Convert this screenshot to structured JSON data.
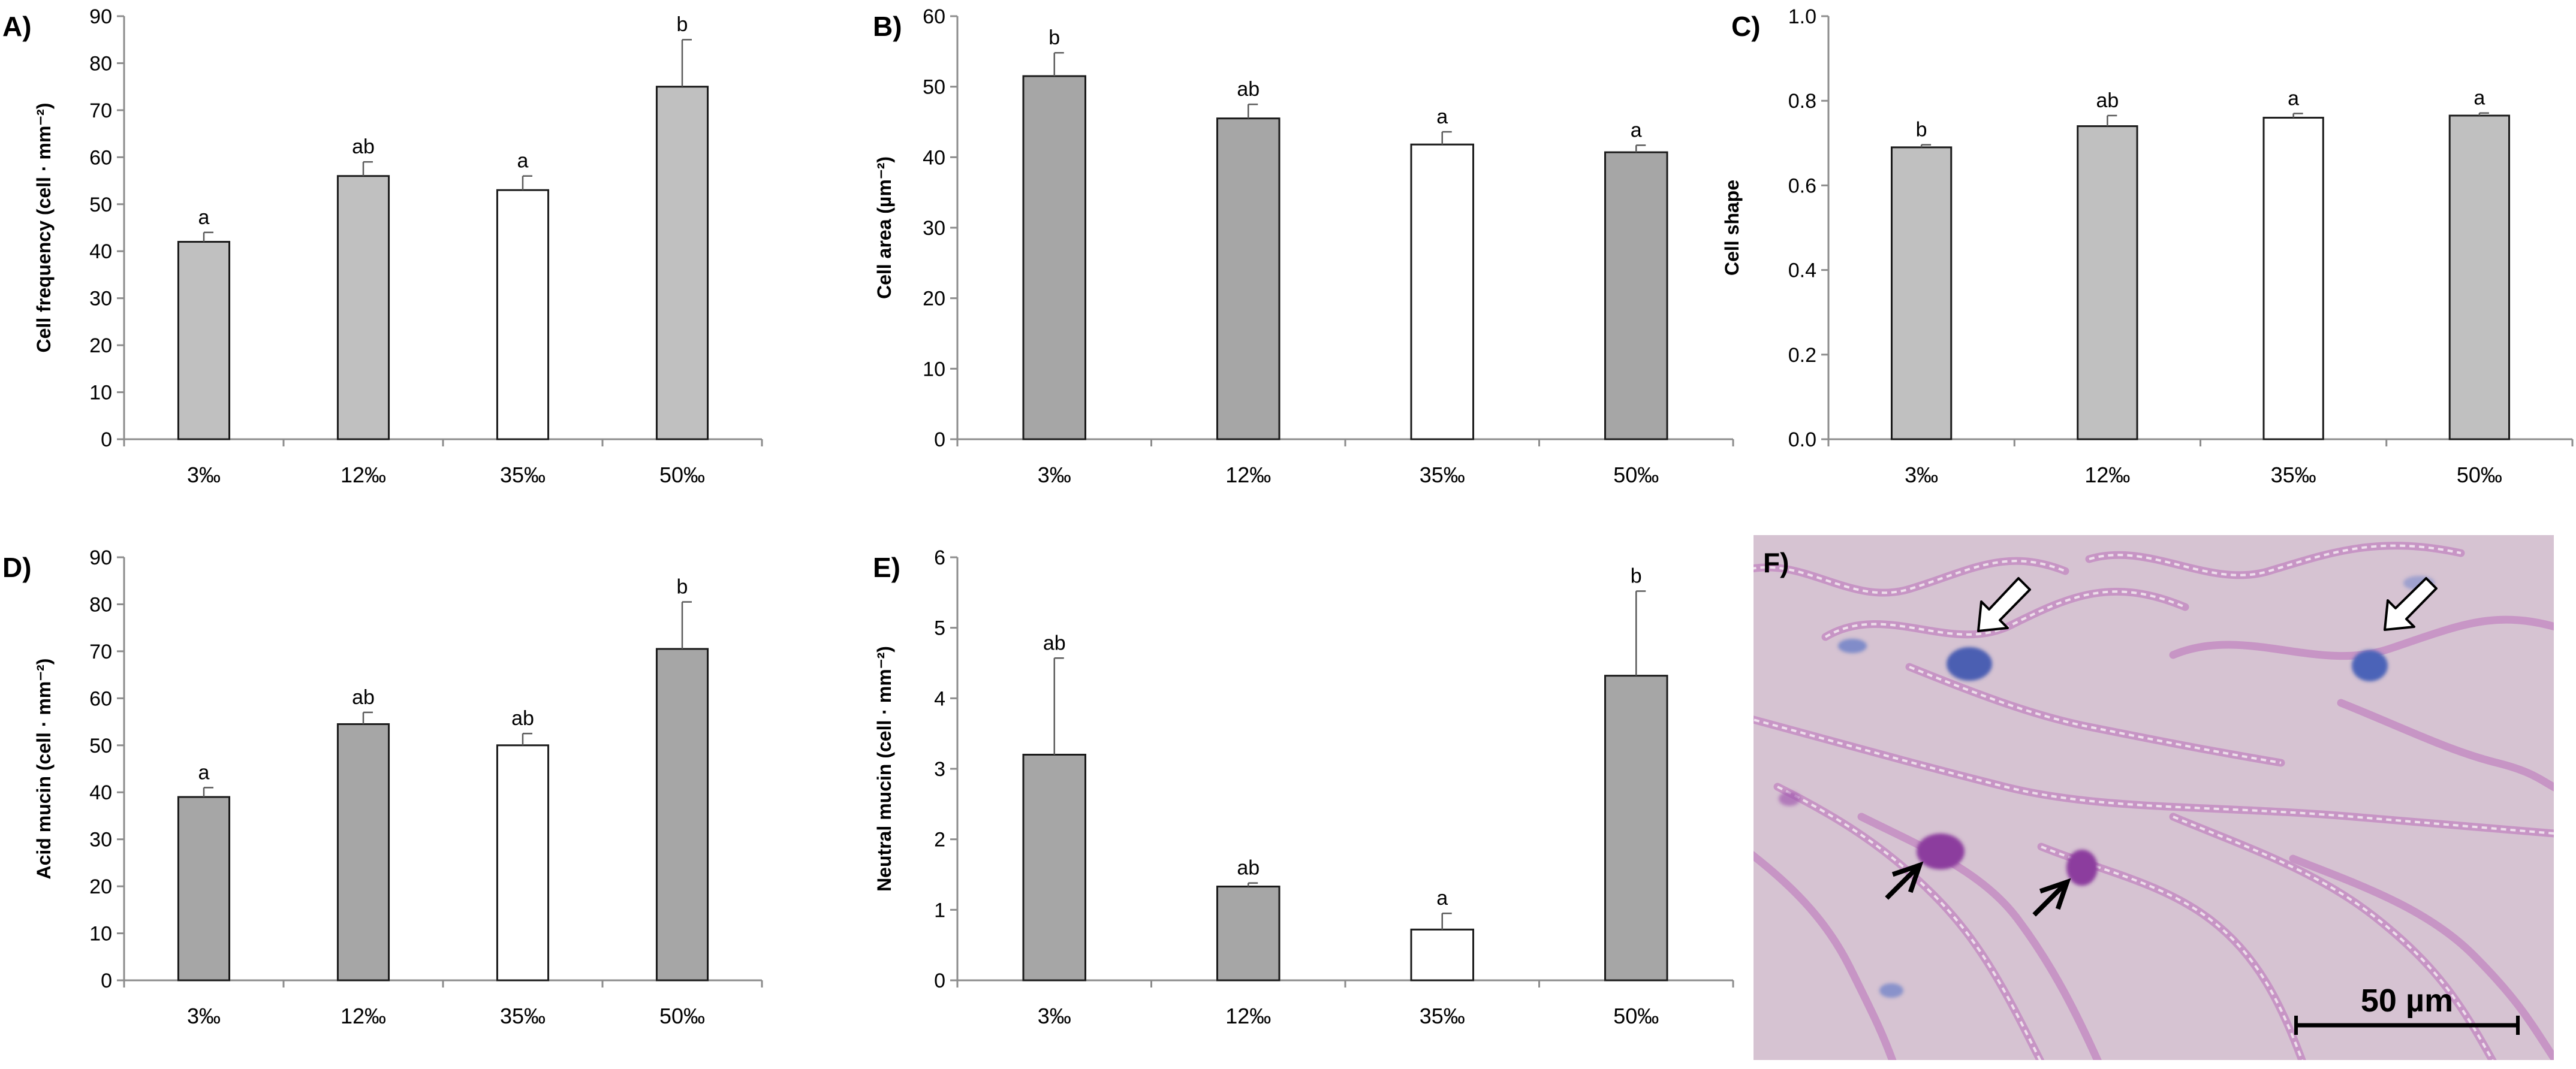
{
  "chart_data": [
    {
      "type": "bar",
      "panel": "A)",
      "categories": [
        "3‰",
        "12‰",
        "35‰",
        "50‰"
      ],
      "values": [
        42,
        56,
        53,
        75
      ],
      "errors": [
        2,
        3,
        3,
        10
      ],
      "letters": [
        "a",
        "ab",
        "a",
        "b"
      ],
      "bar_colors": [
        "#c0c0c0",
        "#c0c0c0",
        "#ffffff",
        "#c0c0c0"
      ],
      "ylabel": "Cell frequency (cell · mm⁻²)",
      "ylim": [
        0,
        90
      ],
      "ytick_labels": [
        "0",
        "10",
        "20",
        "30",
        "40",
        "50",
        "60",
        "70",
        "80",
        "90"
      ]
    },
    {
      "type": "bar",
      "panel": "B)",
      "categories": [
        "3‰",
        "12‰",
        "35‰",
        "50‰"
      ],
      "values": [
        51.5,
        45.5,
        41.8,
        40.7
      ],
      "errors": [
        3.3,
        2.0,
        1.8,
        1.0
      ],
      "letters": [
        "b",
        "ab",
        "a",
        "a"
      ],
      "bar_colors": [
        "#a6a6a6",
        "#a6a6a6",
        "#ffffff",
        "#a6a6a6"
      ],
      "ylabel": "Cell area (µm⁻²)",
      "ylim": [
        0,
        60
      ],
      "ytick_labels": [
        "0",
        "10",
        "20",
        "30",
        "40",
        "50",
        "60"
      ]
    },
    {
      "type": "bar",
      "panel": "C)",
      "categories": [
        "3‰",
        "12‰",
        "35‰",
        "50‰"
      ],
      "values": [
        0.69,
        0.74,
        0.76,
        0.765
      ],
      "errors": [
        0.006,
        0.025,
        0.01,
        0.006
      ],
      "letters": [
        "b",
        "ab",
        "a",
        "a"
      ],
      "bar_colors": [
        "#c0c0c0",
        "#c0c0c0",
        "#ffffff",
        "#c0c0c0"
      ],
      "ylabel": "Cell shape",
      "ylim": [
        0,
        1
      ],
      "ytick_labels": [
        "0.0",
        "0.2",
        "0.4",
        "0.6",
        "0.8",
        "1.0"
      ]
    },
    {
      "type": "bar",
      "panel": "D)",
      "categories": [
        "3‰",
        "12‰",
        "35‰",
        "50‰"
      ],
      "values": [
        39,
        54.5,
        50,
        70.5
      ],
      "errors": [
        2,
        2.5,
        2.5,
        10
      ],
      "letters": [
        "a",
        "ab",
        "ab",
        "b"
      ],
      "bar_colors": [
        "#a6a6a6",
        "#a6a6a6",
        "#ffffff",
        "#a6a6a6"
      ],
      "ylabel": "Acid mucin (cell · mm⁻²)",
      "ylim": [
        0,
        90
      ],
      "ytick_labels": [
        "0",
        "10",
        "20",
        "30",
        "40",
        "50",
        "60",
        "70",
        "80",
        "90"
      ]
    },
    {
      "type": "bar",
      "panel": "E)",
      "categories": [
        "3‰",
        "12‰",
        "35‰",
        "50‰"
      ],
      "values": [
        3.2,
        1.33,
        0.72,
        4.32
      ],
      "errors": [
        1.37,
        0.05,
        0.23,
        1.2
      ],
      "letters": [
        "ab",
        "ab",
        "a",
        "b"
      ],
      "bar_colors": [
        "#a6a6a6",
        "#a6a6a6",
        "#ffffff",
        "#a6a6a6"
      ],
      "ylabel": "Neutral mucin (cell · mm⁻²)",
      "ylim": [
        0,
        6
      ],
      "ytick_labels": [
        "0",
        "1",
        "2",
        "3",
        "4",
        "5",
        "6"
      ]
    }
  ],
  "micrograph": {
    "panel": "F)",
    "scale_bar_label": "50 µm",
    "arrow_colors": {
      "acid_mucin_arrows": "#ffffff",
      "neutral_mucin_arrows": "#000000"
    }
  }
}
